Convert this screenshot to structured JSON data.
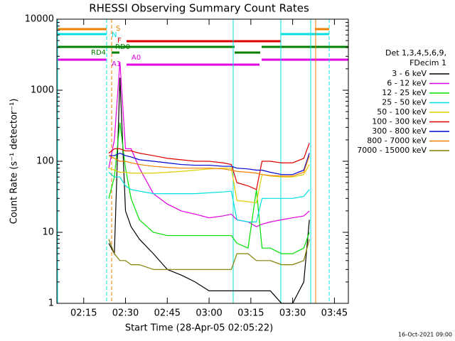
{
  "chart_data": {
    "type": "line",
    "title": "RHESSI Observing Summary Count Rates",
    "xlabel": "Start Time (28-Apr-05 02:05:22)",
    "ylabel": "Count Rate (s⁻¹ detector⁻¹)",
    "footer": "16-Oct-2021 09:00",
    "legend_title": [
      "Det 1,3,4,5,6,9,",
      "FDecim 1"
    ],
    "annotations": [
      "S",
      "N",
      "F",
      "RD0",
      "RD4",
      "A1",
      "A0"
    ],
    "log_y": true,
    "xlim": [
      "02:05:22",
      "03:50:00"
    ],
    "xticks": [
      "02:15",
      "02:30",
      "02:45",
      "03:00",
      "03:15",
      "03:30",
      "03:45"
    ],
    "ylim": [
      1,
      10000
    ],
    "yticks": [
      1,
      10,
      100,
      1000,
      10000
    ],
    "x": [
      "02:24",
      "02:26",
      "02:28",
      "02:30",
      "02:32",
      "02:35",
      "02:40",
      "02:45",
      "02:50",
      "02:55",
      "03:00",
      "03:05",
      "03:08",
      "03:10",
      "03:14",
      "03:17",
      "03:19",
      "03:22",
      "03:26",
      "03:30",
      "03:34",
      "03:36"
    ],
    "series": [
      {
        "name": "3 - 6 keV",
        "color": "#000000",
        "values": [
          7,
          5,
          1500,
          20,
          12,
          8,
          5,
          3,
          2.5,
          2,
          1.5,
          1.5,
          1.5,
          1.5,
          1.5,
          1.5,
          1.5,
          1.5,
          1,
          1,
          2,
          15
        ]
      },
      {
        "name": "6 - 12 keV",
        "color": "#e000e0",
        "values": [
          80,
          200,
          2500,
          150,
          150,
          80,
          35,
          25,
          20,
          18,
          16,
          17,
          18,
          15,
          14,
          12,
          13,
          14,
          15,
          16,
          17,
          20
        ]
      },
      {
        "name": "12 - 25 keV",
        "color": "#00e000",
        "values": [
          30,
          60,
          350,
          80,
          30,
          15,
          10,
          9,
          9,
          9,
          9,
          9,
          9,
          7,
          6,
          40,
          6,
          6,
          5,
          5,
          6,
          10
        ]
      },
      {
        "name": "25 - 50 keV",
        "color": "#00e0e0",
        "values": [
          70,
          60,
          60,
          45,
          40,
          38,
          35,
          35,
          35,
          35,
          36,
          37,
          38,
          15,
          14,
          14,
          30,
          30,
          30,
          30,
          32,
          40
        ]
      },
      {
        "name": "50 - 100 keV",
        "color": "#e0d000",
        "values": [
          80,
          75,
          70,
          70,
          68,
          68,
          68,
          70,
          72,
          75,
          78,
          80,
          80,
          28,
          27,
          26,
          65,
          62,
          60,
          60,
          65,
          90
        ]
      },
      {
        "name": "100 - 300 keV",
        "color": "#e00000",
        "values": [
          130,
          150,
          150,
          140,
          140,
          130,
          120,
          110,
          105,
          100,
          100,
          95,
          90,
          50,
          45,
          40,
          100,
          100,
          95,
          95,
          110,
          180
        ]
      },
      {
        "name": "300 - 800 keV",
        "color": "#0000d0",
        "values": [
          120,
          120,
          130,
          120,
          115,
          105,
          100,
          95,
          90,
          88,
          88,
          85,
          85,
          80,
          78,
          75,
          75,
          70,
          65,
          65,
          75,
          130
        ]
      },
      {
        "name": "800 - 7000 keV",
        "color": "#f08000",
        "values": [
          120,
          110,
          100,
          100,
          95,
          90,
          85,
          82,
          80,
          80,
          80,
          78,
          75,
          72,
          70,
          68,
          65,
          63,
          62,
          62,
          70,
          120
        ]
      },
      {
        "name": "7000 - 15000 keV",
        "color": "#808000",
        "values": [
          8,
          5,
          4,
          4,
          3.5,
          3.5,
          3,
          3,
          3,
          3,
          3,
          3,
          3,
          5,
          5,
          4,
          4,
          4,
          3.5,
          3.5,
          4,
          8
        ]
      }
    ]
  }
}
